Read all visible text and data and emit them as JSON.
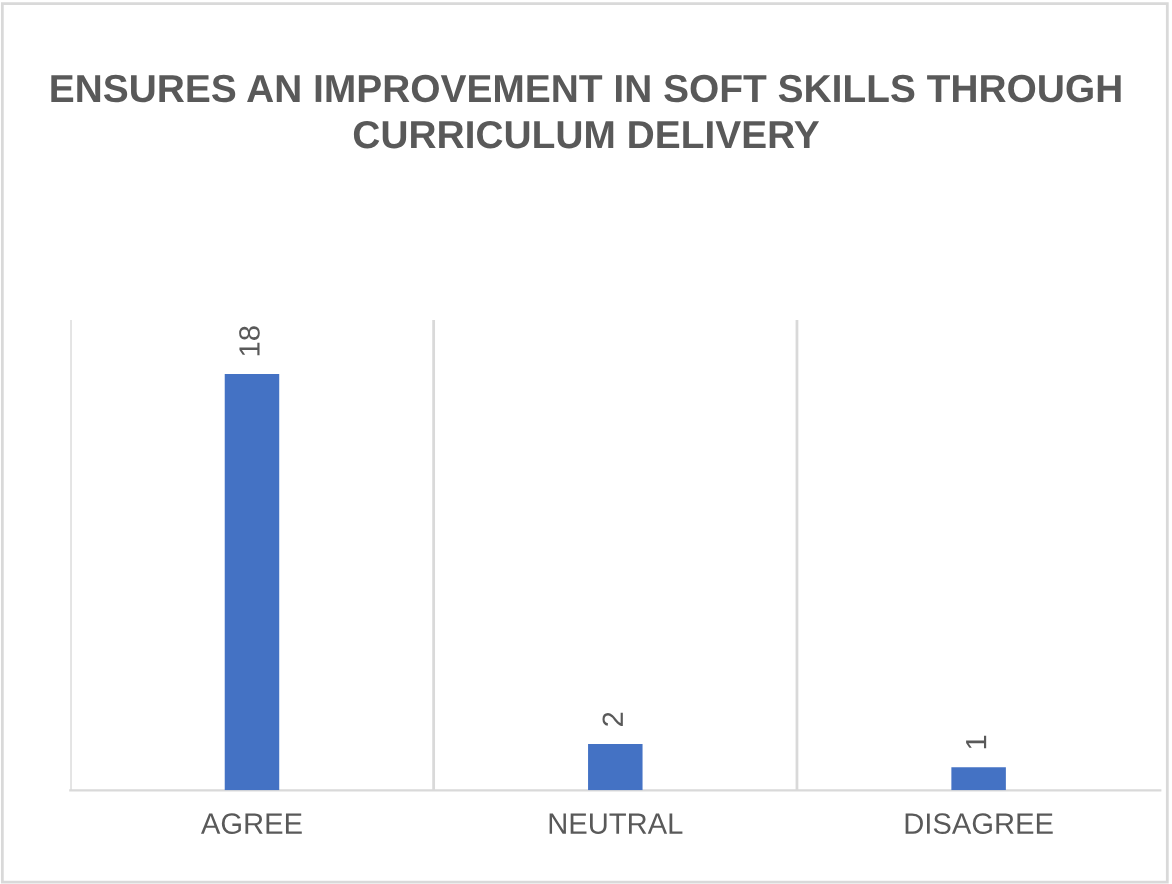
{
  "chart_data": {
    "type": "bar",
    "title": "ENSURES AN IMPROVEMENT IN SOFT SKILLS THROUGH CURRICULUM DELIVERY",
    "categories": [
      "AGREE",
      "NEUTRAL",
      "DISAGREE"
    ],
    "values": [
      18,
      2,
      1
    ],
    "color": "#4472c4",
    "data_labels": true,
    "grid": "x",
    "legend": false
  }
}
